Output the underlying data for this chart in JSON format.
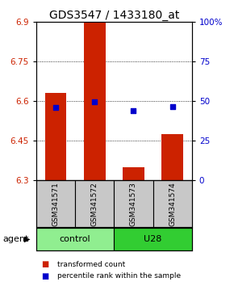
{
  "title": "GDS3547 / 1433180_at",
  "samples": [
    "GSM341571",
    "GSM341572",
    "GSM341573",
    "GSM341574"
  ],
  "groups": [
    {
      "label": "control",
      "indices": [
        0,
        1
      ],
      "color": "#90EE90"
    },
    {
      "label": "U28",
      "indices": [
        2,
        3
      ],
      "color": "#32CD32"
    }
  ],
  "y_min": 6.3,
  "y_max": 6.9,
  "y_ticks_left": [
    6.3,
    6.45,
    6.6,
    6.75,
    6.9
  ],
  "y_ticks_right": [
    0,
    25,
    50,
    75,
    100
  ],
  "bar_tops": [
    6.63,
    6.9,
    6.35,
    6.475
  ],
  "bar_bottom": 6.3,
  "bar_color": "#CC2200",
  "bar_width": 0.55,
  "blue_dot_values": [
    6.575,
    6.597,
    6.563,
    6.578
  ],
  "blue_dot_color": "#0000CC",
  "dot_size": 18,
  "grid_ticks": [
    6.45,
    6.6,
    6.75
  ],
  "legend_red_label": "transformed count",
  "legend_blue_label": "percentile rank within the sample",
  "agent_label": "agent",
  "left_axis_color": "#CC2200",
  "right_axis_color": "#0000CC",
  "title_fontsize": 10,
  "tick_fontsize": 7.5,
  "label_fontsize": 8,
  "sample_label_fontsize": 6.5,
  "group_label_fontsize": 8,
  "legend_fontsize": 6.5,
  "gray_color": "#C8C8C8"
}
